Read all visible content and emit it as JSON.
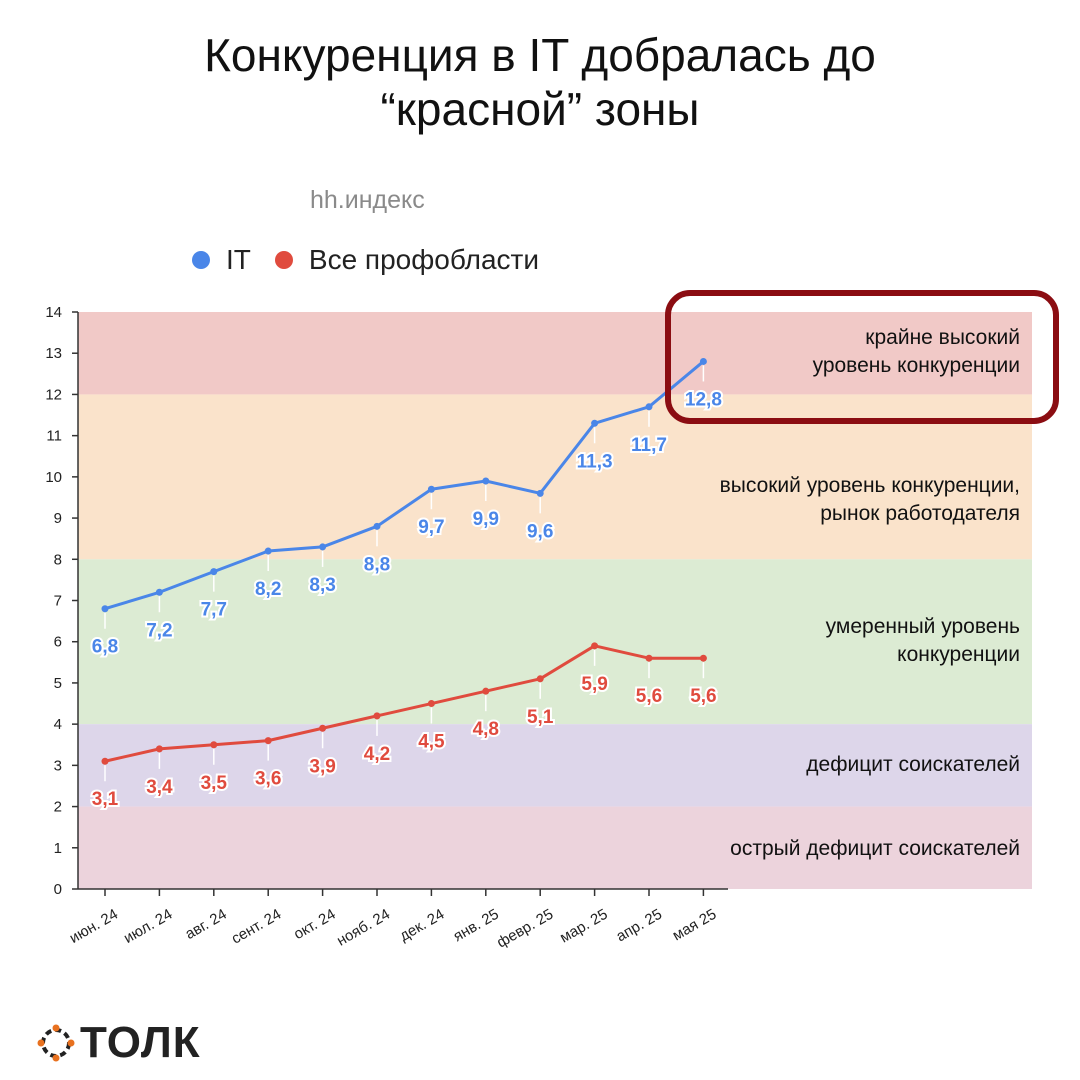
{
  "page": {
    "title_line1": "Конкуренция в IT добралась до",
    "title_line2": "“красной” зоны",
    "subtitle": "hh.индекс",
    "logo_text": "ТОЛК"
  },
  "legend": [
    {
      "label": "IT",
      "color": "#4a86e8"
    },
    {
      "label": "Все профобласти",
      "color": "#e04b3e"
    }
  ],
  "zones": [
    {
      "from": 12,
      "to": 14,
      "color": "#f1c9c7",
      "label": "крайне высокий уровень конкуренции",
      "lines": [
        "крайне высокий",
        "уровень конкуренции"
      ]
    },
    {
      "from": 8,
      "to": 12,
      "color": "#fae3cb",
      "label": "высокий уровень конкуренции, рынок работодателя",
      "lines": [
        "высокий уровень конкуренции,",
        "рынок работодателя"
      ]
    },
    {
      "from": 4,
      "to": 8,
      "color": "#dcebd3",
      "label": "умеренный уровень конкуренции",
      "lines": [
        "умеренный уровень",
        "конкуренции"
      ]
    },
    {
      "from": 2,
      "to": 4,
      "color": "#ddd6ea",
      "label": "дефицит соискателей",
      "lines": [
        "дефицит соискателей"
      ]
    },
    {
      "from": 0,
      "to": 2,
      "color": "#ecd3dc",
      "label": "острый дефицит соискателей",
      "lines": [
        "острый дефицит соискателей"
      ]
    }
  ],
  "highlight": {
    "color": "#8b0d12"
  },
  "chart_data": {
    "type": "line",
    "title": "hh.индекс",
    "categories": [
      "июн. 24",
      "июл. 24",
      "авг. 24",
      "сент. 24",
      "окт. 24",
      "нояб. 24",
      "дек. 24",
      "янв. 25",
      "февр. 25",
      "мар. 25",
      "апр. 25",
      "мая 25"
    ],
    "series": [
      {
        "name": "IT",
        "color": "#4a86e8",
        "values": [
          6.8,
          7.2,
          7.7,
          8.2,
          8.3,
          8.8,
          9.7,
          9.9,
          9.6,
          11.3,
          11.7,
          12.8
        ],
        "labels": [
          "6,8",
          "7,2",
          "7,7",
          "8,2",
          "8,3",
          "8,8",
          "9,7",
          "9,9",
          "9,6",
          "11,3",
          "11,7",
          "12,8"
        ]
      },
      {
        "name": "Все профобласти",
        "color": "#e04b3e",
        "values": [
          3.1,
          3.4,
          3.5,
          3.6,
          3.9,
          4.2,
          4.5,
          4.8,
          5.1,
          5.9,
          5.6,
          5.6
        ],
        "labels": [
          "3,1",
          "3,4",
          "3,5",
          "3,6",
          "3,9",
          "4,2",
          "4,5",
          "4,8",
          "5,1",
          "5,9",
          "5,6",
          "5,6"
        ]
      }
    ],
    "ylim": [
      0,
      14
    ],
    "yticks": [
      0,
      1,
      2,
      3,
      4,
      5,
      6,
      7,
      8,
      9,
      10,
      11,
      12,
      13,
      14
    ],
    "legend_position": "top-left",
    "grid": false
  }
}
